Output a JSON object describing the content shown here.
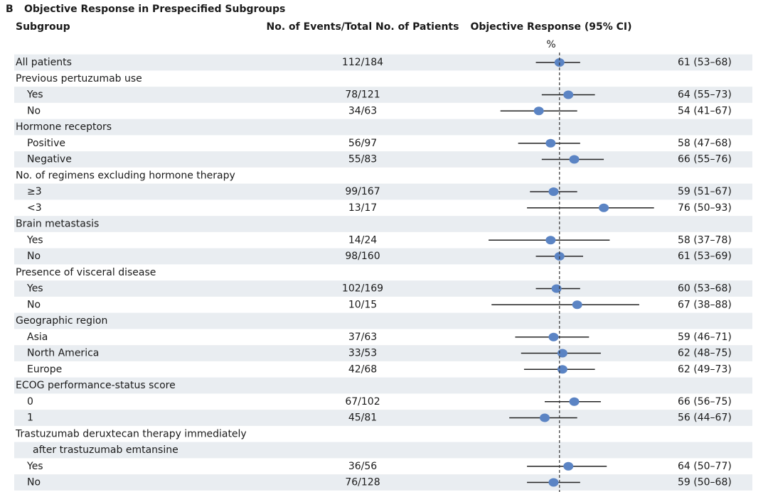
{
  "chart_data": {
    "type": "forest",
    "panel": "B",
    "title": "Objective Response in Prespecified Subgroups",
    "columns": {
      "subgroup": "Subgroup",
      "events": "No. of Events/Total No. of Patients",
      "response": "Objective Response (95% CI)"
    },
    "axis_unit": "%",
    "xlim": [
      30,
      95
    ],
    "reference": 61,
    "color": "#5b84c4",
    "rows": [
      {
        "label": "All patients",
        "events": "112/184",
        "value": 61,
        "ci": [
          53,
          68
        ],
        "value_label": "61 (53–68)"
      },
      {
        "label": "Previous pertuzumab use",
        "rows": [
          {
            "label": "Yes",
            "events": "78/121",
            "value": 64,
            "ci": [
              55,
              73
            ],
            "value_label": "64 (55–73)"
          },
          {
            "label": "No",
            "events": "34/63",
            "value": 54,
            "ci": [
              41,
              67
            ],
            "value_label": "54 (41–67)"
          }
        ]
      },
      {
        "label": "Hormone receptors",
        "rows": [
          {
            "label": "Positive",
            "events": "56/97",
            "value": 58,
            "ci": [
              47,
              68
            ],
            "value_label": "58 (47–68)"
          },
          {
            "label": "Negative",
            "events": "55/83",
            "value": 66,
            "ci": [
              55,
              76
            ],
            "value_label": "66 (55–76)"
          }
        ]
      },
      {
        "label": "No. of regimens excluding hormone therapy",
        "rows": [
          {
            "label": "≥3",
            "events": "99/167",
            "value": 59,
            "ci": [
              51,
              67
            ],
            "value_label": "59 (51–67)"
          },
          {
            "label": "<3",
            "events": "13/17",
            "value": 76,
            "ci": [
              50,
              93
            ],
            "value_label": "76 (50–93)"
          }
        ]
      },
      {
        "label": "Brain metastasis",
        "rows": [
          {
            "label": "Yes",
            "events": "14/24",
            "value": 58,
            "ci": [
              37,
              78
            ],
            "value_label": "58 (37–78)"
          },
          {
            "label": "No",
            "events": "98/160",
            "value": 61,
            "ci": [
              53,
              69
            ],
            "value_label": "61 (53–69)"
          }
        ]
      },
      {
        "label": "Presence of visceral disease",
        "rows": [
          {
            "label": "Yes",
            "events": "102/169",
            "value": 60,
            "ci": [
              53,
              68
            ],
            "value_label": "60 (53–68)"
          },
          {
            "label": "No",
            "events": "10/15",
            "value": 67,
            "ci": [
              38,
              88
            ],
            "value_label": "67 (38–88)"
          }
        ]
      },
      {
        "label": "Geographic region",
        "rows": [
          {
            "label": "Asia",
            "events": "37/63",
            "value": 59,
            "ci": [
              46,
              71
            ],
            "value_label": "59 (46–71)"
          },
          {
            "label": "North America",
            "events": "33/53",
            "value": 62,
            "ci": [
              48,
              75
            ],
            "value_label": "62 (48–75)"
          },
          {
            "label": "Europe",
            "events": "42/68",
            "value": 62,
            "ci": [
              49,
              73
            ],
            "value_label": "62 (49–73)"
          }
        ]
      },
      {
        "label": "ECOG performance-status score",
        "rows": [
          {
            "label": "0",
            "events": "67/102",
            "value": 66,
            "ci": [
              56,
              75
            ],
            "value_label": "66 (56–75)"
          },
          {
            "label": "1",
            "events": "45/81",
            "value": 56,
            "ci": [
              44,
              67
            ],
            "value_label": "56 (44–67)"
          }
        ]
      },
      {
        "label": [
          "Trastuzumab deruxtecan therapy immediately",
          "after trastuzumab emtansine"
        ],
        "rows": [
          {
            "label": "Yes",
            "events": "36/56",
            "value": 64,
            "ci": [
              50,
              77
            ],
            "value_label": "64 (50–77)"
          },
          {
            "label": "No",
            "events": "76/128",
            "value": 59,
            "ci": [
              50,
              68
            ],
            "value_label": "59 (50–68)"
          }
        ]
      }
    ]
  }
}
